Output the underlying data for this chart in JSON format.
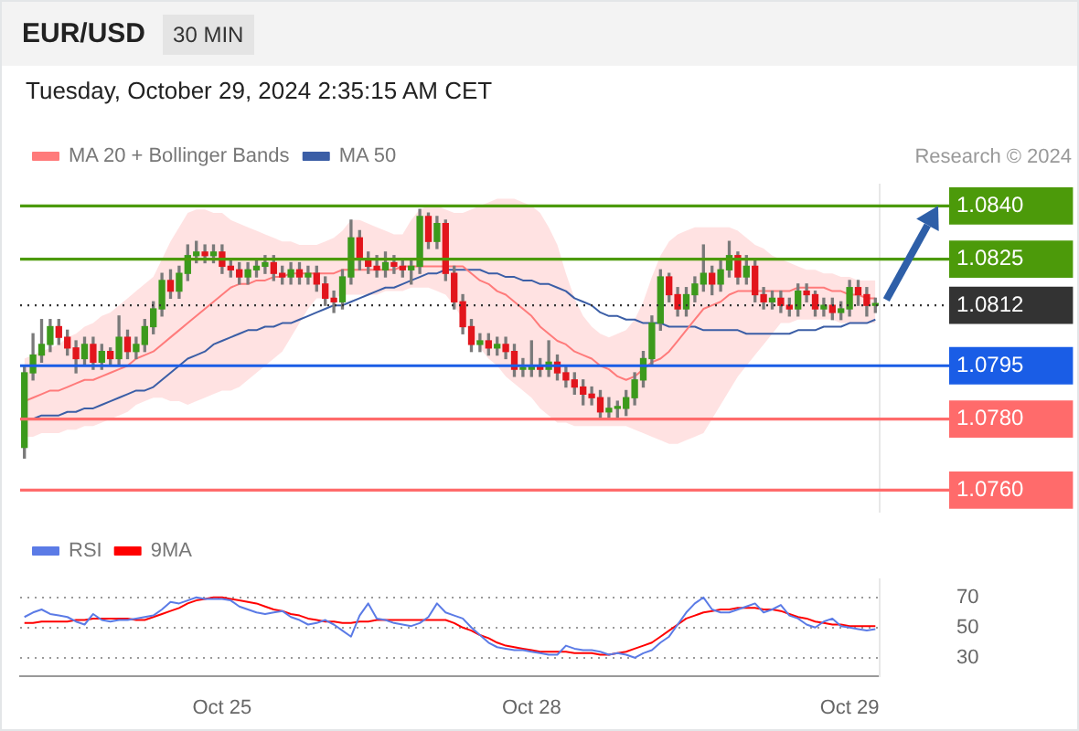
{
  "chart_data": [
    {
      "type": "candlestick",
      "title": "EUR/USD",
      "subtitle": "30 MIN",
      "annotations": [
        "Tuesday, October 29, 2024 2:35:15 AM CET",
        "Research © 2024"
      ],
      "legend": "top left",
      "tick_labels": "y",
      "categories": [
        null,
        null,
        null,
        null,
        null,
        null,
        null,
        null,
        null,
        null,
        null,
        null,
        null,
        null,
        null,
        null,
        null,
        null,
        null,
        null,
        null,
        null,
        null,
        null,
        null,
        null,
        null,
        null,
        null,
        null,
        null,
        null,
        null,
        null,
        null,
        null,
        null,
        null,
        null,
        null,
        null,
        null,
        null,
        null,
        null,
        null,
        null,
        null,
        null,
        null,
        null,
        null,
        null,
        null,
        null,
        null,
        null,
        null,
        null,
        null,
        null,
        null,
        null,
        null,
        null,
        null,
        null,
        null,
        null,
        null,
        null,
        null,
        null,
        null,
        null,
        null,
        null,
        null,
        null,
        null,
        null,
        null,
        null,
        null,
        null,
        null,
        null,
        null,
        null,
        null,
        null,
        null,
        null,
        null,
        null,
        null,
        null,
        null,
        null,
        null
      ],
      "ylim": [
        1.0754,
        1.0846
      ],
      "yticks": [
        {
          "value": 1.076,
          "label": "1.0760"
        },
        {
          "value": 1.078,
          "label": "1.0780"
        },
        {
          "value": 1.0795,
          "label": "1.0795"
        },
        {
          "value": 1.0812,
          "label": "1.0812"
        },
        {
          "value": 1.0825,
          "label": "1.0825"
        },
        {
          "value": 1.084,
          "label": "1.0840"
        }
      ],
      "ohlc": [
        [
          1.0772,
          1.0795,
          1.0769,
          1.0793
        ],
        [
          1.0793,
          1.0804,
          1.0791,
          1.0798
        ],
        [
          1.0798,
          1.0808,
          1.0796,
          1.0801
        ],
        [
          1.0801,
          1.0808,
          1.0799,
          1.0806
        ],
        [
          1.0806,
          1.0808,
          1.0801,
          1.0803
        ],
        [
          1.0803,
          1.0805,
          1.0798,
          1.08
        ],
        [
          1.08,
          1.0802,
          1.0793,
          1.0797
        ],
        [
          1.0797,
          1.0803,
          1.0795,
          1.0801
        ],
        [
          1.0801,
          1.0803,
          1.0794,
          1.0796
        ],
        [
          1.0796,
          1.0801,
          1.0794,
          1.0799
        ],
        [
          1.0799,
          1.08,
          1.0795,
          1.0797
        ],
        [
          1.0797,
          1.0809,
          1.0795,
          1.0803
        ],
        [
          1.0803,
          1.0805,
          1.0797,
          1.0799
        ],
        [
          1.0799,
          1.0803,
          1.0797,
          1.0801
        ],
        [
          1.0801,
          1.0808,
          1.0799,
          1.0806
        ],
        [
          1.0806,
          1.0813,
          1.0804,
          1.0811
        ],
        [
          1.0811,
          1.0821,
          1.0809,
          1.0819
        ],
        [
          1.0819,
          1.0822,
          1.0814,
          1.0816
        ],
        [
          1.0816,
          1.0823,
          1.0814,
          1.0821
        ],
        [
          1.0821,
          1.0829,
          1.0819,
          1.0826
        ],
        [
          1.0826,
          1.083,
          1.0824,
          1.0827
        ],
        [
          1.0827,
          1.0829,
          1.0824,
          1.0826
        ],
        [
          1.0826,
          1.0829,
          1.0824,
          1.0827
        ],
        [
          1.0827,
          1.0829,
          1.0821,
          1.0823
        ],
        [
          1.0823,
          1.0825,
          1.082,
          1.0822
        ],
        [
          1.0822,
          1.0824,
          1.0818,
          1.082
        ],
        [
          1.082,
          1.0824,
          1.0818,
          1.0822
        ],
        [
          1.0822,
          1.0825,
          1.082,
          1.0823
        ],
        [
          1.0823,
          1.0826,
          1.0821,
          1.0824
        ],
        [
          1.0824,
          1.0826,
          1.0819,
          1.0821
        ],
        [
          1.0821,
          1.0823,
          1.0818,
          1.082
        ],
        [
          1.082,
          1.0824,
          1.0818,
          1.0822
        ],
        [
          1.0822,
          1.0824,
          1.0818,
          1.082
        ],
        [
          1.082,
          1.0823,
          1.0818,
          1.0821
        ],
        [
          1.0821,
          1.0823,
          1.0816,
          1.0818
        ],
        [
          1.0818,
          1.082,
          1.0812,
          1.0814
        ],
        [
          1.0814,
          1.0816,
          1.081,
          1.0813
        ],
        [
          1.0813,
          1.0822,
          1.0811,
          1.082
        ],
        [
          1.082,
          1.0836,
          1.0818,
          1.0831
        ],
        [
          1.0831,
          1.0833,
          1.0822,
          1.0825
        ],
        [
          1.0825,
          1.0827,
          1.0821,
          1.0823
        ],
        [
          1.0823,
          1.0826,
          1.082,
          1.0822
        ],
        [
          1.0822,
          1.0827,
          1.082,
          1.0824
        ],
        [
          1.0824,
          1.0826,
          1.0821,
          1.0823
        ],
        [
          1.0823,
          1.0825,
          1.082,
          1.0822
        ],
        [
          1.0822,
          1.0825,
          1.0818,
          1.0823
        ],
        [
          1.0823,
          1.0839,
          1.0821,
          1.0837
        ],
        [
          1.0837,
          1.0838,
          1.0828,
          1.083
        ],
        [
          1.083,
          1.0837,
          1.0828,
          1.0835
        ],
        [
          1.0835,
          1.0836,
          1.0819,
          1.0821
        ],
        [
          1.0821,
          1.0823,
          1.0811,
          1.0813
        ],
        [
          1.0813,
          1.0815,
          1.0804,
          1.0806
        ],
        [
          1.0806,
          1.0808,
          1.0799,
          1.0801
        ],
        [
          1.0801,
          1.0804,
          1.0799,
          1.0802
        ],
        [
          1.0802,
          1.0804,
          1.0798,
          1.08
        ],
        [
          1.08,
          1.0803,
          1.0798,
          1.0801
        ],
        [
          1.0801,
          1.0803,
          1.0797,
          1.0799
        ],
        [
          1.0799,
          1.0801,
          1.0792,
          1.0794
        ],
        [
          1.0794,
          1.0797,
          1.0792,
          1.0794
        ],
        [
          1.0794,
          1.0802,
          1.0792,
          1.0795
        ],
        [
          1.0795,
          1.0797,
          1.0792,
          1.0794
        ],
        [
          1.0794,
          1.0802,
          1.0792,
          1.0796
        ],
        [
          1.0796,
          1.0798,
          1.0791,
          1.0793
        ],
        [
          1.0793,
          1.0795,
          1.0789,
          1.0791
        ],
        [
          1.0791,
          1.0793,
          1.0787,
          1.0789
        ],
        [
          1.0789,
          1.0791,
          1.0784,
          1.0787
        ],
        [
          1.0787,
          1.0789,
          1.0784,
          1.0786
        ],
        [
          1.0786,
          1.0788,
          1.078,
          1.0782
        ],
        [
          1.0782,
          1.0786,
          1.078,
          1.0783
        ],
        [
          1.0783,
          1.0785,
          1.078,
          1.0783
        ],
        [
          1.0783,
          1.0788,
          1.0781,
          1.0786
        ],
        [
          1.0786,
          1.0793,
          1.0784,
          1.0791
        ],
        [
          1.0791,
          1.0799,
          1.0789,
          1.0797
        ],
        [
          1.0797,
          1.0809,
          1.0795,
          1.0807
        ],
        [
          1.0807,
          1.0822,
          1.0805,
          1.082
        ],
        [
          1.082,
          1.0821,
          1.0813,
          1.0815
        ],
        [
          1.0815,
          1.0817,
          1.0809,
          1.0811
        ],
        [
          1.0811,
          1.0817,
          1.0809,
          1.0815
        ],
        [
          1.0815,
          1.082,
          1.0813,
          1.0818
        ],
        [
          1.0818,
          1.0829,
          1.0816,
          1.0821
        ],
        [
          1.0821,
          1.0823,
          1.0815,
          1.0818
        ],
        [
          1.0818,
          1.0825,
          1.0816,
          1.0822
        ],
        [
          1.0822,
          1.083,
          1.082,
          1.0826
        ],
        [
          1.0826,
          1.0827,
          1.0818,
          1.082
        ],
        [
          1.082,
          1.0826,
          1.0818,
          1.0823
        ],
        [
          1.0823,
          1.0825,
          1.0813,
          1.0815
        ],
        [
          1.0815,
          1.0817,
          1.0811,
          1.0813
        ],
        [
          1.0813,
          1.0816,
          1.0811,
          1.0814
        ],
        [
          1.0814,
          1.0816,
          1.081,
          1.0812
        ],
        [
          1.0812,
          1.0814,
          1.0809,
          1.0811
        ],
        [
          1.0811,
          1.0818,
          1.0809,
          1.0816
        ],
        [
          1.0816,
          1.0818,
          1.0813,
          1.0815
        ],
        [
          1.0815,
          1.0816,
          1.0809,
          1.0811
        ],
        [
          1.0811,
          1.0814,
          1.0809,
          1.0812
        ],
        [
          1.0812,
          1.0814,
          1.0808,
          1.081
        ],
        [
          1.081,
          1.0813,
          1.0808,
          1.0811
        ],
        [
          1.0811,
          1.0819,
          1.0809,
          1.0817
        ],
        [
          1.0817,
          1.0819,
          1.0812,
          1.0815
        ],
        [
          1.0815,
          1.0817,
          1.0809,
          1.0812
        ],
        [
          1.0812,
          1.0814,
          1.081,
          1.0812
        ]
      ],
      "series": [
        {
          "name": "MA 20 + Bollinger Bands",
          "type": "line",
          "color": "#ff7b7b",
          "values": [
            1.0785,
            1.0786,
            1.0787,
            1.0788,
            1.0788,
            1.0789,
            1.079,
            1.0791,
            1.0791,
            1.0792,
            1.0793,
            1.0794,
            1.0795,
            1.0797,
            1.0798,
            1.0799,
            1.0801,
            1.0803,
            1.0805,
            1.0807,
            1.0809,
            1.0811,
            1.0813,
            1.0815,
            1.0817,
            1.0818,
            1.0818,
            1.0819,
            1.0819,
            1.082,
            1.082,
            1.0821,
            1.0821,
            1.0821,
            1.0821,
            1.0821,
            1.0821,
            1.0822,
            1.0822,
            1.0822,
            1.0822,
            1.0822,
            1.0822,
            1.0822,
            1.0823,
            1.0823,
            1.0823,
            1.0823,
            1.0823,
            1.0823,
            1.0823,
            1.0823,
            1.0821,
            1.0819,
            1.0818,
            1.0816,
            1.0815,
            1.0813,
            1.0811,
            1.0809,
            1.0806,
            1.0804,
            1.0802,
            1.0801,
            1.0799,
            1.0798,
            1.0797,
            1.0795,
            1.0794,
            1.0792,
            1.0791,
            1.0792,
            1.0794,
            1.0796,
            1.0797,
            1.0799,
            1.0802,
            1.0805,
            1.0808,
            1.0811,
            1.0812,
            1.0813,
            1.0815,
            1.0816,
            1.0816,
            1.0816,
            1.0816,
            1.0816,
            1.0816,
            1.0816,
            1.0817,
            1.0817,
            1.0817,
            1.0817,
            1.0816,
            1.0816,
            1.0815,
            1.0815,
            1.0814,
            1.0814
          ],
          "upper": [
            1.0797,
            1.0798,
            1.0799,
            1.08,
            1.0801,
            1.0803,
            1.0804,
            1.0806,
            1.0807,
            1.0809,
            1.081,
            1.0812,
            1.0814,
            1.0816,
            1.0818,
            1.082,
            1.0825,
            1.083,
            1.0834,
            1.0838,
            1.0839,
            1.0839,
            1.0838,
            1.0838,
            1.0836,
            1.0835,
            1.0834,
            1.0833,
            1.0832,
            1.0831,
            1.083,
            1.083,
            1.0829,
            1.0829,
            1.0829,
            1.083,
            1.0831,
            1.0833,
            1.0836,
            1.0836,
            1.0835,
            1.0834,
            1.0833,
            1.0832,
            1.0832,
            1.0836,
            1.0839,
            1.084,
            1.084,
            1.0839,
            1.0838,
            1.0838,
            1.0839,
            1.084,
            1.0841,
            1.0842,
            1.0842,
            1.0842,
            1.0841,
            1.084,
            1.0838,
            1.0834,
            1.0829,
            1.0821,
            1.0814,
            1.0809,
            1.0806,
            1.0804,
            1.0803,
            1.0804,
            1.0805,
            1.0808,
            1.0813,
            1.082,
            1.0826,
            1.083,
            1.0832,
            1.0833,
            1.0834,
            1.0834,
            1.0834,
            1.0834,
            1.0834,
            1.0833,
            1.0831,
            1.0829,
            1.0828,
            1.0826,
            1.0825,
            1.0824,
            1.0823,
            1.0822,
            1.0822,
            1.0821,
            1.0821,
            1.082,
            1.082,
            1.0819,
            1.0819,
            1.0819
          ],
          "lower": [
            1.0775,
            1.0775,
            1.0776,
            1.0776,
            1.0776,
            1.0777,
            1.0777,
            1.0778,
            1.0778,
            1.0779,
            1.078,
            1.0781,
            1.0782,
            1.0784,
            1.0785,
            1.0786,
            1.0786,
            1.0785,
            1.0785,
            1.0784,
            1.0785,
            1.0786,
            1.0787,
            1.0788,
            1.0788,
            1.0789,
            1.0791,
            1.0793,
            1.0795,
            1.0797,
            1.0799,
            1.0803,
            1.0807,
            1.0811,
            1.0814,
            1.0814,
            1.0814,
            1.0815,
            1.0815,
            1.0815,
            1.0815,
            1.0815,
            1.0816,
            1.0816,
            1.0816,
            1.0817,
            1.0817,
            1.0817,
            1.0816,
            1.0815,
            1.0812,
            1.0808,
            1.0804,
            1.08,
            1.0797,
            1.0795,
            1.0792,
            1.079,
            1.0788,
            1.0786,
            1.0783,
            1.0781,
            1.0779,
            1.0779,
            1.0778,
            1.0778,
            1.0778,
            1.0778,
            1.0778,
            1.0778,
            1.0778,
            1.0777,
            1.0776,
            1.0775,
            1.0774,
            1.0773,
            1.0773,
            1.0774,
            1.0775,
            1.0776,
            1.078,
            1.0784,
            1.0788,
            1.0792,
            1.0795,
            1.0798,
            1.0801,
            1.0804,
            1.0807,
            1.0807,
            1.0808,
            1.0808,
            1.0808,
            1.0808,
            1.0808,
            1.0807,
            1.0807,
            1.0807,
            1.0807,
            1.0807
          ]
        },
        {
          "name": "MA 50",
          "type": "line",
          "color": "#3b5ea6",
          "values": [
            null,
            1.078,
            1.0781,
            1.0781,
            1.0781,
            1.0782,
            1.0782,
            1.0783,
            1.0783,
            1.0784,
            1.0785,
            1.0786,
            1.0787,
            1.0788,
            1.0788,
            1.0789,
            1.0791,
            1.0793,
            1.0795,
            1.0797,
            1.0798,
            1.0799,
            1.0801,
            1.0802,
            1.0803,
            1.0804,
            1.0805,
            1.0805,
            1.0806,
            1.0806,
            1.0807,
            1.0807,
            1.0808,
            1.0809,
            1.081,
            1.0811,
            1.0812,
            1.0812,
            1.0813,
            1.0814,
            1.0815,
            1.0816,
            1.0817,
            1.0817,
            1.0818,
            1.0819,
            1.082,
            1.0821,
            1.0821,
            1.0822,
            1.0822,
            1.0822,
            1.0822,
            1.0822,
            1.0821,
            1.0821,
            1.082,
            1.082,
            1.0819,
            1.0819,
            1.0818,
            1.0818,
            1.0817,
            1.0816,
            1.0814,
            1.0813,
            1.0812,
            1.081,
            1.0809,
            1.0809,
            1.0808,
            1.0808,
            1.0807,
            1.0807,
            1.0807,
            1.0806,
            1.0806,
            1.0806,
            1.0806,
            1.0805,
            1.0805,
            1.0805,
            1.0805,
            1.0805,
            1.0804,
            1.0804,
            1.0804,
            1.0804,
            1.0804,
            1.0804,
            1.0805,
            1.0805,
            1.0805,
            1.0806,
            1.0806,
            1.0806,
            1.0807,
            1.0807,
            1.0807,
            1.0808
          ]
        }
      ],
      "ref_lines": [
        {
          "axis": "y",
          "value": 1.084,
          "color": "#4c9a0a"
        },
        {
          "axis": "y",
          "value": 1.0825,
          "color": "#4c9a0a"
        },
        {
          "axis": "y",
          "value": 1.0812,
          "color": "#333333",
          "line_style": "dotted"
        },
        {
          "axis": "y",
          "value": 1.0795,
          "color": "#1a5de6"
        },
        {
          "axis": "y",
          "value": 1.078,
          "color": "#ff6b6b"
        },
        {
          "axis": "y",
          "value": 1.076,
          "color": "#ff6b6b"
        }
      ]
    },
    {
      "type": "line",
      "legend": "top left",
      "grid": "y",
      "categories": [
        null,
        null,
        null,
        null,
        null,
        null,
        null,
        null,
        null,
        null,
        null,
        null,
        null,
        null,
        null,
        null,
        null,
        null,
        null,
        null,
        null,
        null,
        null,
        "Oct 25",
        null,
        null,
        null,
        null,
        null,
        null,
        null,
        null,
        null,
        null,
        null,
        null,
        null,
        null,
        null,
        null,
        null,
        null,
        null,
        null,
        null,
        null,
        null,
        null,
        null,
        null,
        null,
        null,
        null,
        null,
        null,
        null,
        null,
        null,
        null,
        "Oct 28",
        null,
        null,
        null,
        null,
        null,
        null,
        null,
        null,
        null,
        null,
        null,
        null,
        null,
        null,
        null,
        null,
        null,
        null,
        null,
        null,
        null,
        null,
        null,
        null,
        null,
        null,
        null,
        null,
        null,
        null,
        null,
        null,
        null,
        null,
        null,
        null,
        "Oct 29",
        null,
        null,
        null
      ],
      "ylim": [
        18,
        82
      ],
      "yticks": [
        30,
        50,
        70
      ],
      "series": [
        {
          "name": "RSI",
          "color": "#5b7be6",
          "values": [
            57,
            60,
            62,
            59,
            58,
            57,
            54,
            52,
            59,
            55,
            54,
            55,
            55,
            56,
            57,
            58,
            62,
            67,
            66,
            68,
            70,
            69,
            69,
            69,
            68,
            64,
            62,
            60,
            59,
            60,
            61,
            57,
            55,
            52,
            53,
            55,
            52,
            48,
            44,
            58,
            66,
            56,
            55,
            53,
            52,
            51,
            53,
            57,
            66,
            60,
            58,
            56,
            50,
            45,
            40,
            37,
            36,
            35,
            35,
            34,
            33,
            32,
            32,
            38,
            36,
            35,
            35,
            34,
            32,
            33,
            32,
            30,
            33,
            35,
            40,
            44,
            52,
            60,
            66,
            70,
            62,
            60,
            60,
            62,
            64,
            66,
            60,
            62,
            65,
            58,
            56,
            52,
            50,
            54,
            56,
            51,
            50,
            49,
            48,
            49
          ]
        },
        {
          "name": "9MA",
          "color": "#ff0000",
          "values": [
            53,
            53,
            54,
            54,
            54,
            54,
            55,
            55,
            56,
            56,
            56,
            56,
            56,
            55,
            55,
            57,
            59,
            61,
            63,
            66,
            68,
            69,
            70,
            70,
            69,
            68,
            67,
            66,
            64,
            62,
            61,
            59,
            58,
            56,
            55,
            54,
            54,
            53,
            53,
            54,
            54,
            55,
            55,
            55,
            55,
            55,
            55,
            55,
            55,
            55,
            53,
            50,
            48,
            45,
            43,
            40,
            38,
            37,
            36,
            35,
            34,
            34,
            34,
            34,
            33,
            33,
            33,
            32,
            32,
            33,
            34,
            36,
            38,
            40,
            44,
            48,
            52,
            56,
            58,
            60,
            61,
            62,
            62,
            63,
            63,
            63,
            62,
            62,
            61,
            59,
            57,
            56,
            54,
            53,
            52,
            52,
            51,
            51,
            51,
            51
          ]
        }
      ]
    }
  ]
}
